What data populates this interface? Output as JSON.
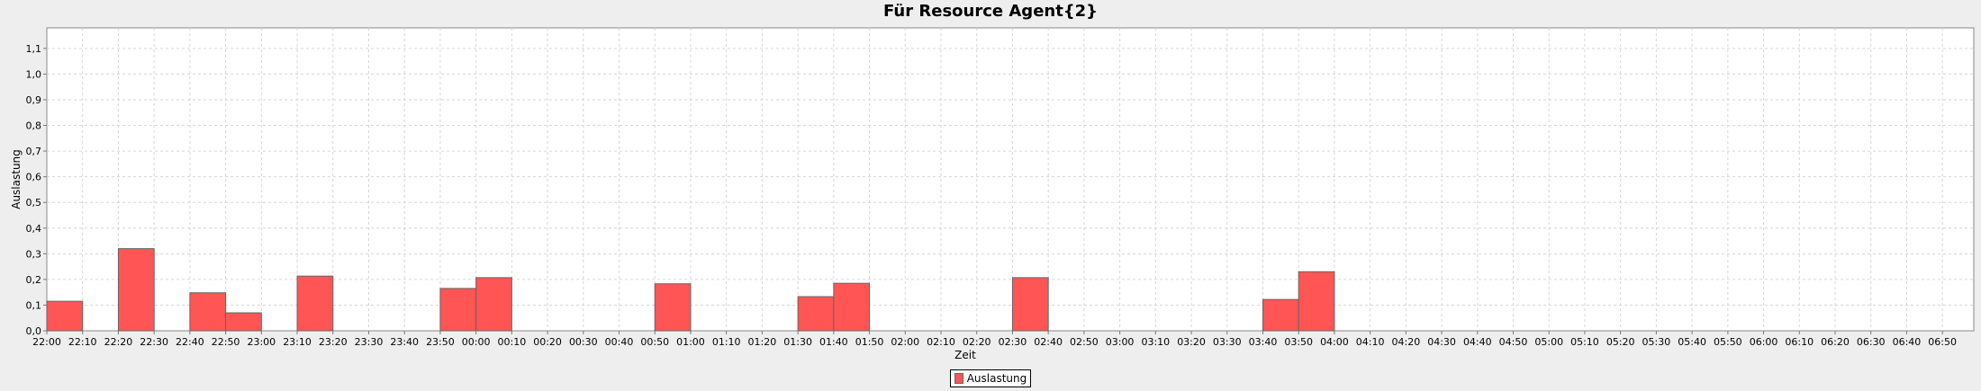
{
  "chart_data": {
    "type": "bar",
    "title": "Für Resource Agent{2}",
    "xlabel": "Zeit",
    "ylabel": "Auslastung",
    "ylim": [
      0,
      1.18
    ],
    "yticks": [
      "0,0",
      "0,1",
      "0,2",
      "0,3",
      "0,4",
      "0,5",
      "0,6",
      "0,7",
      "0,8",
      "0,9",
      "1,0",
      "1,1"
    ],
    "xticks": [
      "22:00",
      "22:10",
      "22:20",
      "22:30",
      "22:40",
      "22:50",
      "23:00",
      "23:10",
      "23:20",
      "23:30",
      "23:40",
      "23:50",
      "00:00",
      "00:10",
      "00:20",
      "00:30",
      "00:40",
      "00:50",
      "01:00",
      "01:10",
      "01:20",
      "01:30",
      "01:40",
      "01:50",
      "02:00",
      "02:10",
      "02:20",
      "02:30",
      "02:40",
      "02:50",
      "03:00",
      "03:10",
      "03:20",
      "03:30",
      "03:40",
      "03:50",
      "04:00",
      "04:10",
      "04:20",
      "04:30",
      "04:40",
      "04:50",
      "05:00",
      "05:10",
      "05:20",
      "05:30",
      "05:40",
      "05:50",
      "06:00",
      "06:10",
      "06:20",
      "06:30",
      "06:40",
      "06:50"
    ],
    "grid": true,
    "legend_position": "bottom",
    "series": [
      {
        "name": "Auslastung",
        "color": "#ff5555",
        "bars": [
          {
            "start": "22:00",
            "end": "22:10",
            "value": 0.115
          },
          {
            "start": "22:20",
            "end": "22:30",
            "value": 0.32
          },
          {
            "start": "22:40",
            "end": "22:50",
            "value": 0.148
          },
          {
            "start": "22:50",
            "end": "23:00",
            "value": 0.07
          },
          {
            "start": "23:10",
            "end": "23:20",
            "value": 0.213
          },
          {
            "start": "23:50",
            "end": "00:00",
            "value": 0.165
          },
          {
            "start": "00:00",
            "end": "00:10",
            "value": 0.207
          },
          {
            "start": "00:50",
            "end": "01:00",
            "value": 0.183
          },
          {
            "start": "01:30",
            "end": "01:40",
            "value": 0.133
          },
          {
            "start": "01:40",
            "end": "01:50",
            "value": 0.185
          },
          {
            "start": "02:30",
            "end": "02:40",
            "value": 0.207
          },
          {
            "start": "03:40",
            "end": "03:50",
            "value": 0.122
          },
          {
            "start": "03:50",
            "end": "04:00",
            "value": 0.23
          }
        ]
      }
    ]
  }
}
